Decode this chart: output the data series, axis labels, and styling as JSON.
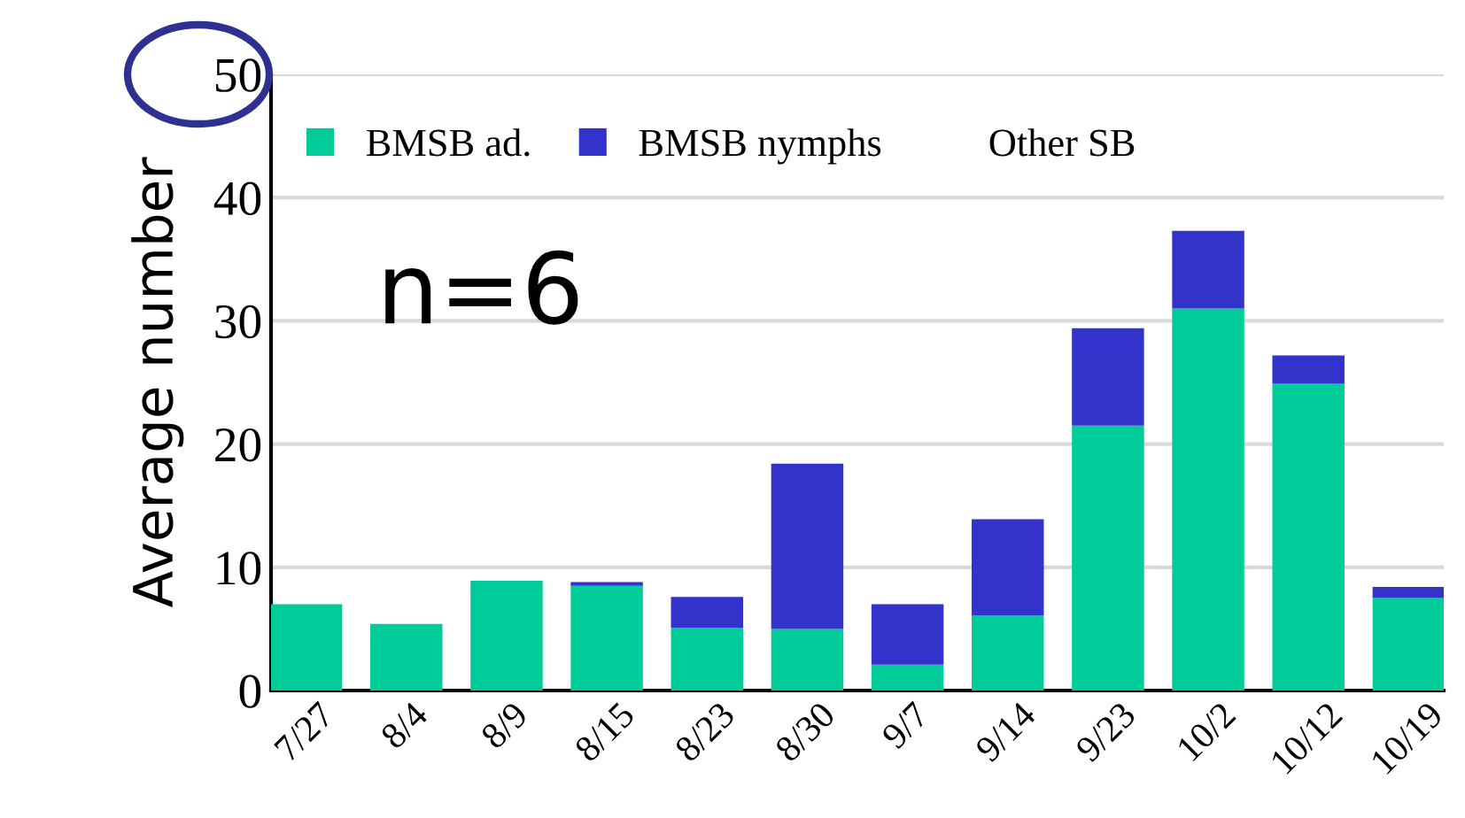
{
  "chart_data": {
    "type": "bar",
    "stacked": true,
    "ylabel": "Average number",
    "categories": [
      "7/27",
      "8/4",
      "8/9",
      "8/15",
      "8/23",
      "8/30",
      "9/7",
      "9/14",
      "9/23",
      "10/2",
      "10/12",
      "10/19"
    ],
    "series": [
      {
        "name": "BMSB ad.",
        "color": "#00cc99",
        "values": [
          7.0,
          5.4,
          8.9,
          8.5,
          5.1,
          5.0,
          2.1,
          6.1,
          21.5,
          31.0,
          24.9,
          7.5
        ]
      },
      {
        "name": "BMSB nymphs",
        "color": "#3333cc",
        "values": [
          0,
          0,
          0,
          0.3,
          2.5,
          13.4,
          4.9,
          7.8,
          7.9,
          6.3,
          2.3,
          0.9
        ]
      },
      {
        "name": "Other SB",
        "values": [
          0,
          0,
          0,
          0,
          0,
          0,
          0,
          0,
          0,
          0,
          0,
          0
        ]
      }
    ],
    "ylim": [
      0,
      50
    ],
    "yticks": [
      0,
      10,
      20,
      30,
      40,
      50
    ],
    "grid": "y",
    "legend": "top left",
    "annotations": [
      {
        "text": "n=6"
      }
    ]
  }
}
